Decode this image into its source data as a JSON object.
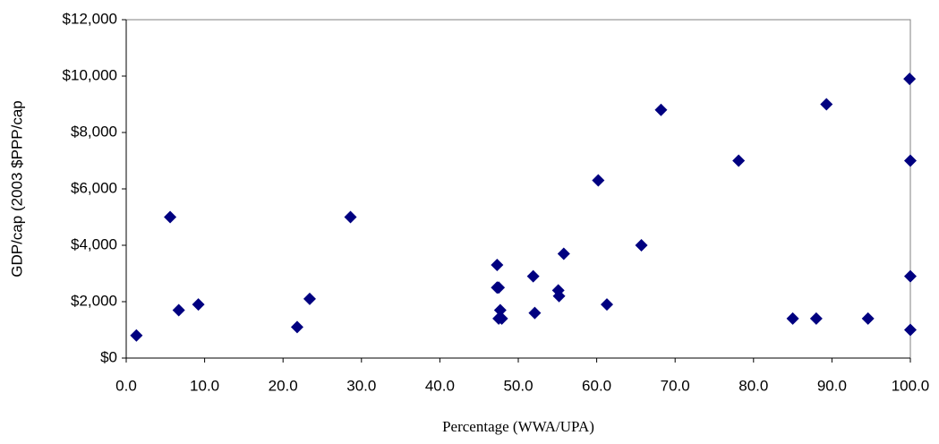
{
  "chart_data": {
    "type": "scatter",
    "x_label": "Percentage (WWA/UPA)",
    "y_label": "GDP/cap (2003 $PPP/cap",
    "color": "#000080",
    "x": [
      1.3,
      5.6,
      6.7,
      9.2,
      21.8,
      23.4,
      28.6,
      47.3,
      47.3,
      47.5,
      47.7,
      47.5,
      47.9,
      51.9,
      52.1,
      55.1,
      55.2,
      55.8,
      60.2,
      61.3,
      65.7,
      68.2,
      78.1,
      85.0,
      88.0,
      89.3,
      94.6,
      99.9,
      100,
      100,
      100
    ],
    "values": [
      800,
      5000,
      1700,
      1900,
      1100,
      2100,
      5000,
      3300,
      2500,
      2500,
      1700,
      1400,
      1400,
      2900,
      1600,
      2400,
      2200,
      3700,
      6300,
      1900,
      4000,
      8800,
      7000,
      1400,
      1400,
      9000,
      1400,
      9900,
      7000,
      2900,
      1000
    ],
    "xlim": [
      0,
      100
    ],
    "xticks": [
      {
        "value": 0,
        "label": "0.0"
      },
      {
        "value": 10,
        "label": "10.0"
      },
      {
        "value": 20,
        "label": "20.0"
      },
      {
        "value": 30,
        "label": "30.0"
      },
      {
        "value": 40,
        "label": "40.0"
      },
      {
        "value": 50,
        "label": "50.0"
      },
      {
        "value": 60,
        "label": "60.0"
      },
      {
        "value": 70,
        "label": "70.0"
      },
      {
        "value": 80,
        "label": "80.0"
      },
      {
        "value": 90,
        "label": "90.0"
      },
      {
        "value": 100,
        "label": "100.0"
      }
    ],
    "ylim": [
      0,
      12000
    ],
    "yticks": [
      {
        "value": 0,
        "label": "$0"
      },
      {
        "value": 2000,
        "label": "$2,000"
      },
      {
        "value": 4000,
        "label": "$4,000"
      },
      {
        "value": 6000,
        "label": "$6,000"
      },
      {
        "value": 8000,
        "label": "$8,000"
      },
      {
        "value": 10000,
        "label": "$10,000"
      },
      {
        "value": 12000,
        "label": "$12,000"
      }
    ]
  }
}
